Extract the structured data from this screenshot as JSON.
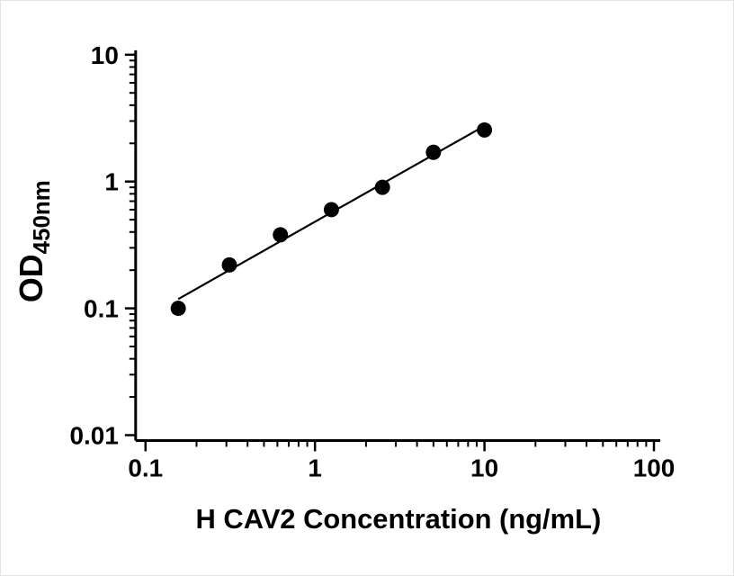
{
  "figure": {
    "background": "#ffffff"
  },
  "chart_data": {
    "type": "scatter",
    "title": "",
    "xlabel": "H CAV2 Concentration (ng/mL)",
    "ylabel": "OD",
    "ylabel_subscript": "450nm",
    "xscale": "log",
    "yscale": "log",
    "xlim": [
      0.1,
      100
    ],
    "ylim": [
      0.01,
      10
    ],
    "xticks": [
      0.1,
      1,
      10,
      100
    ],
    "xtick_labels": [
      "0.1",
      "1",
      "10",
      "100"
    ],
    "yticks": [
      0.01,
      0.1,
      1,
      10
    ],
    "ytick_labels": [
      "0.01",
      "0.1",
      "1",
      "10"
    ],
    "grid": false,
    "legend": "none",
    "axis_color": "#000000",
    "marker_color": "#000000",
    "line_color": "#000000",
    "marker": "filled-circle",
    "trendline": true,
    "points": [
      {
        "x": 0.156,
        "y": 0.1
      },
      {
        "x": 0.3125,
        "y": 0.22
      },
      {
        "x": 0.625,
        "y": 0.38
      },
      {
        "x": 1.25,
        "y": 0.6
      },
      {
        "x": 2.5,
        "y": 0.9
      },
      {
        "x": 5,
        "y": 1.7
      },
      {
        "x": 10,
        "y": 2.55
      }
    ]
  }
}
